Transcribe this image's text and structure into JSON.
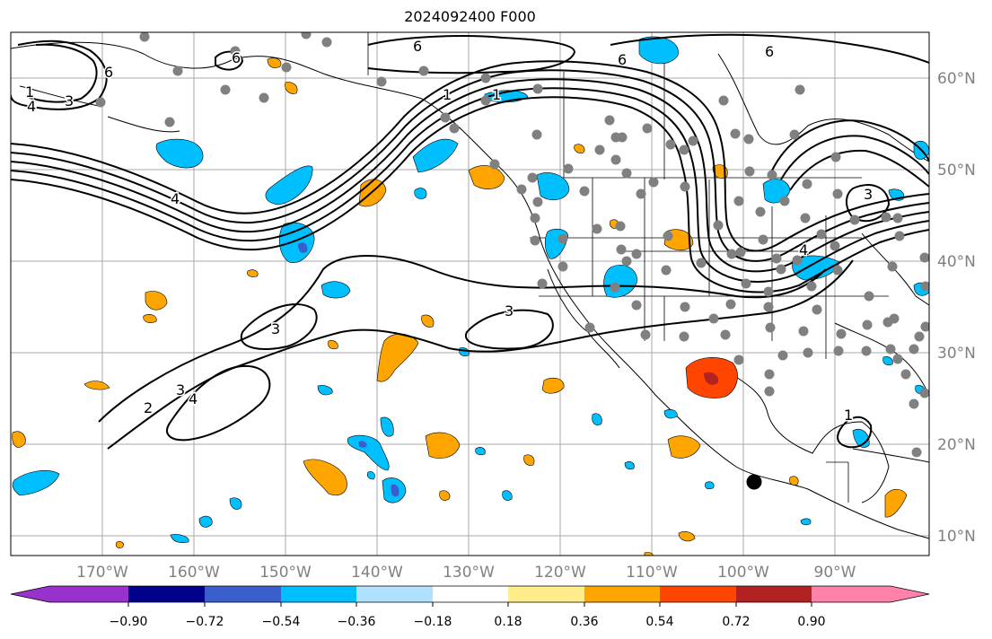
{
  "title": "2024092400 F000",
  "map": {
    "lon_labels": [
      "170°W",
      "160°W",
      "150°W",
      "140°W",
      "130°W",
      "120°W",
      "110°W",
      "100°W",
      "90°W"
    ],
    "lat_labels": [
      "60°N",
      "50°N",
      "40°N",
      "30°N",
      "20°N",
      "10°N"
    ],
    "contour_labels": [
      "1",
      "3",
      "4",
      "6",
      "6",
      "6",
      "6",
      "6",
      "1",
      "4",
      "3",
      "2",
      "3",
      "4",
      "3",
      "3",
      "1",
      "4",
      "1"
    ],
    "grid": true,
    "station_marker_color": "#808080",
    "highlight_marker_color": "#000000"
  },
  "colorbar": {
    "ticks": [
      "−0.90",
      "−0.72",
      "−0.54",
      "−0.36",
      "−0.18",
      "0.18",
      "0.36",
      "0.54",
      "0.72",
      "0.90"
    ],
    "colors": [
      "#9932cc",
      "#00008b",
      "#3a5fcd",
      "#00bfff",
      "#b0e2ff",
      "#ffffff",
      "#ffec8b",
      "#ffa500",
      "#ff4500",
      "#b22222",
      "#ff82ab"
    ]
  }
}
